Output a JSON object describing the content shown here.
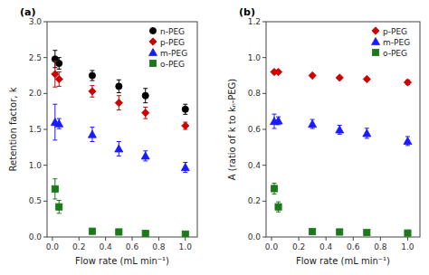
{
  "chart_data": [
    {
      "type": "scatter",
      "title": "(a)",
      "xlabel": "Flow rate (mL min⁻¹)",
      "ylabel": "Retention factor, k",
      "x": [
        0.02,
        0.05,
        0.3,
        0.5,
        0.7,
        1.0
      ],
      "series": [
        {
          "name": "n-PEG",
          "color": "#000000",
          "marker": "circle",
          "values": [
            2.48,
            2.42,
            2.25,
            2.1,
            1.97,
            1.78
          ],
          "errors": [
            0.12,
            0.08,
            0.07,
            0.09,
            0.1,
            0.07
          ]
        },
        {
          "name": "p-PEG",
          "color": "#cc0000",
          "marker": "diamond",
          "values": [
            2.27,
            2.2,
            2.03,
            1.87,
            1.73,
            1.55
          ],
          "errors": [
            0.18,
            0.1,
            0.08,
            0.1,
            0.08,
            0.05
          ]
        },
        {
          "name": "m-PEG",
          "color": "#1a1aff",
          "marker": "triangle",
          "values": [
            1.6,
            1.58,
            1.43,
            1.23,
            1.13,
            0.97
          ],
          "errors": [
            0.25,
            0.07,
            0.1,
            0.1,
            0.07,
            0.07
          ]
        },
        {
          "name": "o-PEG",
          "color": "#1a7a1a",
          "marker": "square",
          "values": [
            0.67,
            0.42,
            0.08,
            0.07,
            0.05,
            0.04
          ],
          "errors": [
            0.14,
            0.09,
            0.02,
            0.02,
            0.02,
            0.02
          ]
        }
      ],
      "xlim": [
        -0.04,
        1.09
      ],
      "xticks": [
        {
          "value": 0.0,
          "label": "0.0"
        },
        0.2,
        0.4,
        0.6,
        0.8,
        {
          "value": 1.0,
          "label": "1.0"
        }
      ],
      "ylim": [
        0,
        3.0
      ],
      "yticks": [
        {
          "value": 0.0,
          "label": "0.0"
        },
        0.5,
        {
          "value": 1.0,
          "label": "1.0"
        },
        1.5,
        {
          "value": 2.0,
          "label": "2.0"
        },
        2.5,
        {
          "value": 3.0,
          "label": "3.0"
        }
      ],
      "grid": false,
      "legend": "upper right"
    },
    {
      "type": "scatter",
      "title": "(b)",
      "xlabel": "Flow rate (mL min⁻¹)",
      "ylabel": "A (ratio of k to kₙ-PEG)",
      "x": [
        0.02,
        0.05,
        0.3,
        0.5,
        0.7,
        1.0
      ],
      "series": [
        {
          "name": "p-PEG",
          "color": "#cc0000",
          "marker": "diamond",
          "values": [
            0.92,
            0.92,
            0.9,
            0.888,
            0.88,
            0.862
          ],
          "errors": [
            0.008,
            0.008,
            0.006,
            0.006,
            0.005,
            0.012
          ]
        },
        {
          "name": "m-PEG",
          "color": "#1a1aff",
          "marker": "triangle",
          "values": [
            0.645,
            0.648,
            0.63,
            0.598,
            0.578,
            0.535
          ],
          "errors": [
            0.04,
            0.022,
            0.025,
            0.025,
            0.028,
            0.025
          ]
        },
        {
          "name": "o-PEG",
          "color": "#1a7a1a",
          "marker": "square",
          "values": [
            0.27,
            0.168,
            0.03,
            0.028,
            0.025,
            0.022
          ],
          "errors": [
            0.03,
            0.028,
            0.008,
            0.006,
            0.006,
            0.006
          ]
        }
      ],
      "xlim": [
        -0.04,
        1.09
      ],
      "xticks": [
        {
          "value": 0.0,
          "label": "0.0"
        },
        0.2,
        0.4,
        0.6,
        0.8,
        {
          "value": 1.0,
          "label": "1.0"
        }
      ],
      "ylim": [
        0,
        1.2
      ],
      "yticks": [
        {
          "value": 0.0,
          "label": "0.0"
        },
        0.2,
        0.4,
        0.6,
        0.8,
        {
          "value": 1.0,
          "label": "1.0"
        },
        1.2
      ],
      "grid": false,
      "legend": "upper right"
    }
  ]
}
